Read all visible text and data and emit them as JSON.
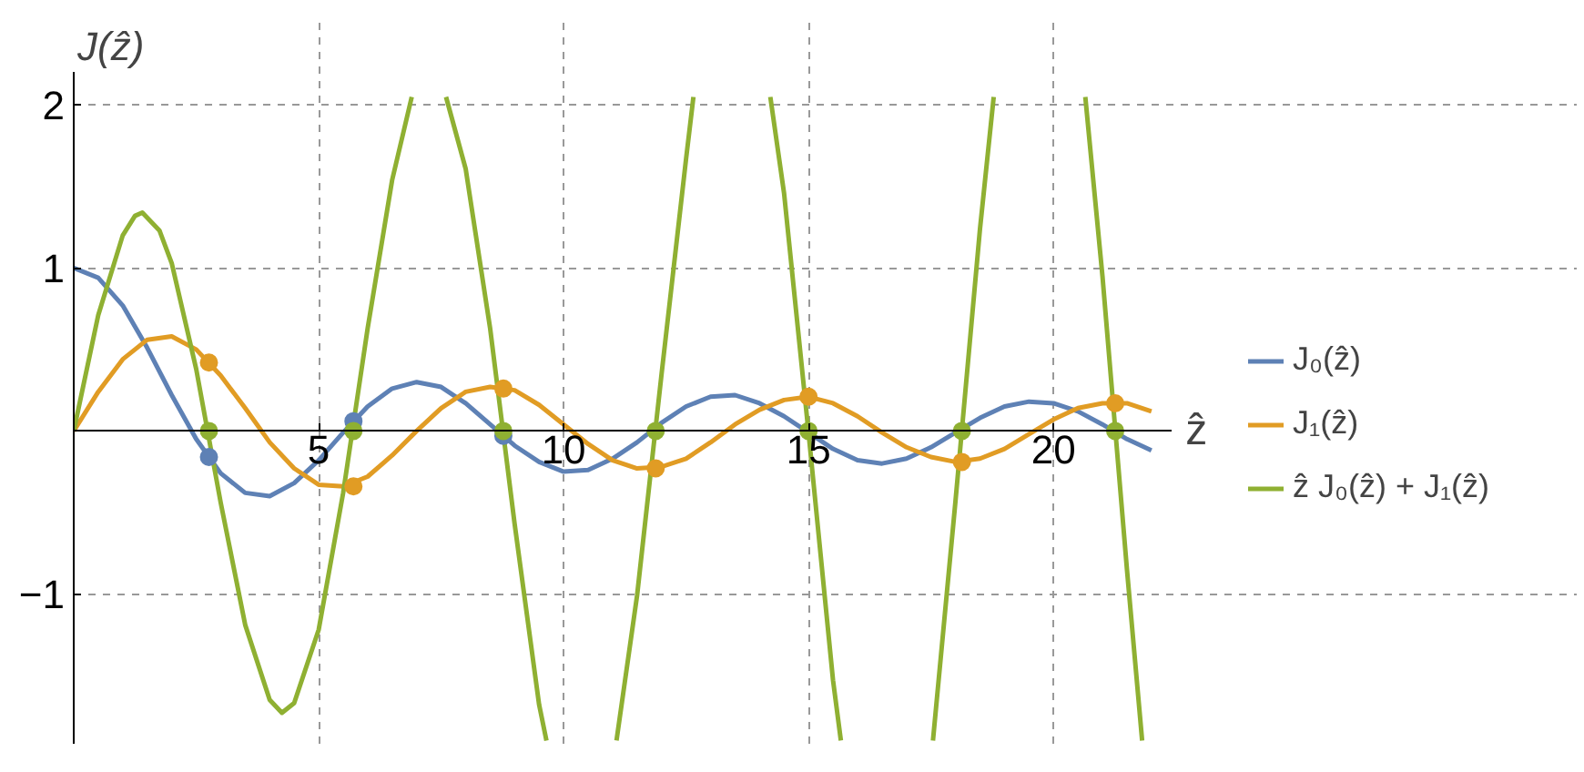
{
  "chart_data": {
    "type": "line",
    "xlabel": "ẑ",
    "ylabel": "J(ẑ)",
    "x": [
      0,
      0.5,
      1,
      1.5,
      2,
      2.5,
      3,
      3.5,
      4,
      4.5,
      5,
      5.5,
      6,
      6.5,
      7,
      7.5,
      8,
      8.5,
      9,
      9.5,
      10,
      10.5,
      11,
      11.5,
      12,
      12.5,
      13,
      13.5,
      14,
      14.5,
      15,
      15.5,
      16,
      16.5,
      17,
      17.5,
      18,
      18.5,
      19,
      19.5,
      20,
      20.5,
      21,
      21.5,
      22
    ],
    "series": [
      {
        "name": "J₀(ẑ)",
        "color": "#5e81b5",
        "values": [
          1,
          0.94,
          0.77,
          0.51,
          0.22,
          -0.05,
          -0.26,
          -0.38,
          -0.4,
          -0.32,
          -0.18,
          -0.01,
          0.15,
          0.26,
          0.3,
          0.27,
          0.17,
          0.04,
          -0.09,
          -0.19,
          -0.25,
          -0.24,
          -0.17,
          -0.07,
          0.05,
          0.15,
          0.21,
          0.22,
          0.17,
          0.09,
          -0.01,
          -0.11,
          -0.18,
          -0.2,
          -0.17,
          -0.1,
          -0.01,
          0.08,
          0.15,
          0.18,
          0.17,
          0.12,
          0.04,
          -0.05,
          -0.12
        ]
      },
      {
        "name": "J₁(ẑ)",
        "color": "#e19c24",
        "values": [
          0,
          0.24,
          0.44,
          0.56,
          0.58,
          0.5,
          0.34,
          0.14,
          -0.07,
          -0.23,
          -0.33,
          -0.34,
          -0.28,
          -0.15,
          0,
          0.14,
          0.24,
          0.27,
          0.25,
          0.16,
          0.04,
          -0.08,
          -0.18,
          -0.23,
          -0.22,
          -0.17,
          -0.07,
          0.04,
          0.13,
          0.19,
          0.21,
          0.17,
          0.09,
          -0.01,
          -0.1,
          -0.16,
          -0.19,
          -0.17,
          -0.11,
          -0.02,
          0.07,
          0.14,
          0.17,
          0.17,
          0.12
        ]
      },
      {
        "name": "ẑ J₀(ẑ) + J₁(ẑ)",
        "color": "#8fb032",
        "x": [
          0,
          0.5,
          1,
          1.25,
          1.4,
          1.75,
          2,
          2.5,
          3,
          3.5,
          4,
          4.25,
          4.5,
          5,
          5.5,
          6,
          6.5,
          6.9,
          7.25,
          7.6,
          8,
          8.5,
          9,
          9.5,
          9.65,
          10.4,
          11.08,
          11.5,
          12,
          12.5,
          12.65,
          13.5,
          14.22,
          14.5,
          15,
          15.5,
          15.66,
          16.6,
          17.54,
          18,
          18.5,
          18.78,
          19.7,
          20.65,
          21,
          21.5,
          21.81
        ],
        "values": [
          0,
          0.71,
          1.2,
          1.32,
          1.34,
          1.23,
          1.03,
          0.38,
          -0.44,
          -1.19,
          -1.65,
          -1.73,
          -1.67,
          -1.22,
          -0.38,
          0.63,
          1.54,
          2.05,
          null,
          2.05,
          1.61,
          0.63,
          -0.57,
          -1.68,
          -1.9,
          null,
          -1.9,
          -1.01,
          0.35,
          1.67,
          2.05,
          null,
          2.05,
          1.46,
          -0.01,
          -1.53,
          -1.9,
          null,
          -1.9,
          -0.43,
          1.24,
          2.05,
          null,
          2.05,
          0.95,
          -0.85,
          -1.9
        ]
      },
      {
        "type": "scatter",
        "color": "#5e81b5",
        "x": [
          2.76,
          5.71,
          8.77
        ],
        "values": [
          -0.16,
          0.06,
          -0.03
        ]
      },
      {
        "type": "scatter",
        "color": "#e19c24",
        "x": [
          2.76,
          5.71,
          8.77,
          11.88,
          15,
          18.13,
          21.26
        ],
        "values": [
          0.42,
          -0.34,
          0.26,
          -0.23,
          0.21,
          -0.19,
          0.17
        ]
      },
      {
        "type": "scatter",
        "color": "#8fb032",
        "x": [
          2.76,
          5.71,
          8.77,
          11.88,
          15,
          18.13,
          21.26
        ],
        "values": [
          0,
          0,
          0,
          0,
          0,
          0,
          0
        ]
      }
    ],
    "xlim": [
      0,
      22.4
    ],
    "ylim": [
      -1.92,
      2.2
    ],
    "xticks": [
      5,
      10,
      15,
      20
    ],
    "yticks": [
      {
        "value": -1,
        "label": "−1"
      },
      1,
      2
    ],
    "grid": true,
    "legend": "right"
  }
}
